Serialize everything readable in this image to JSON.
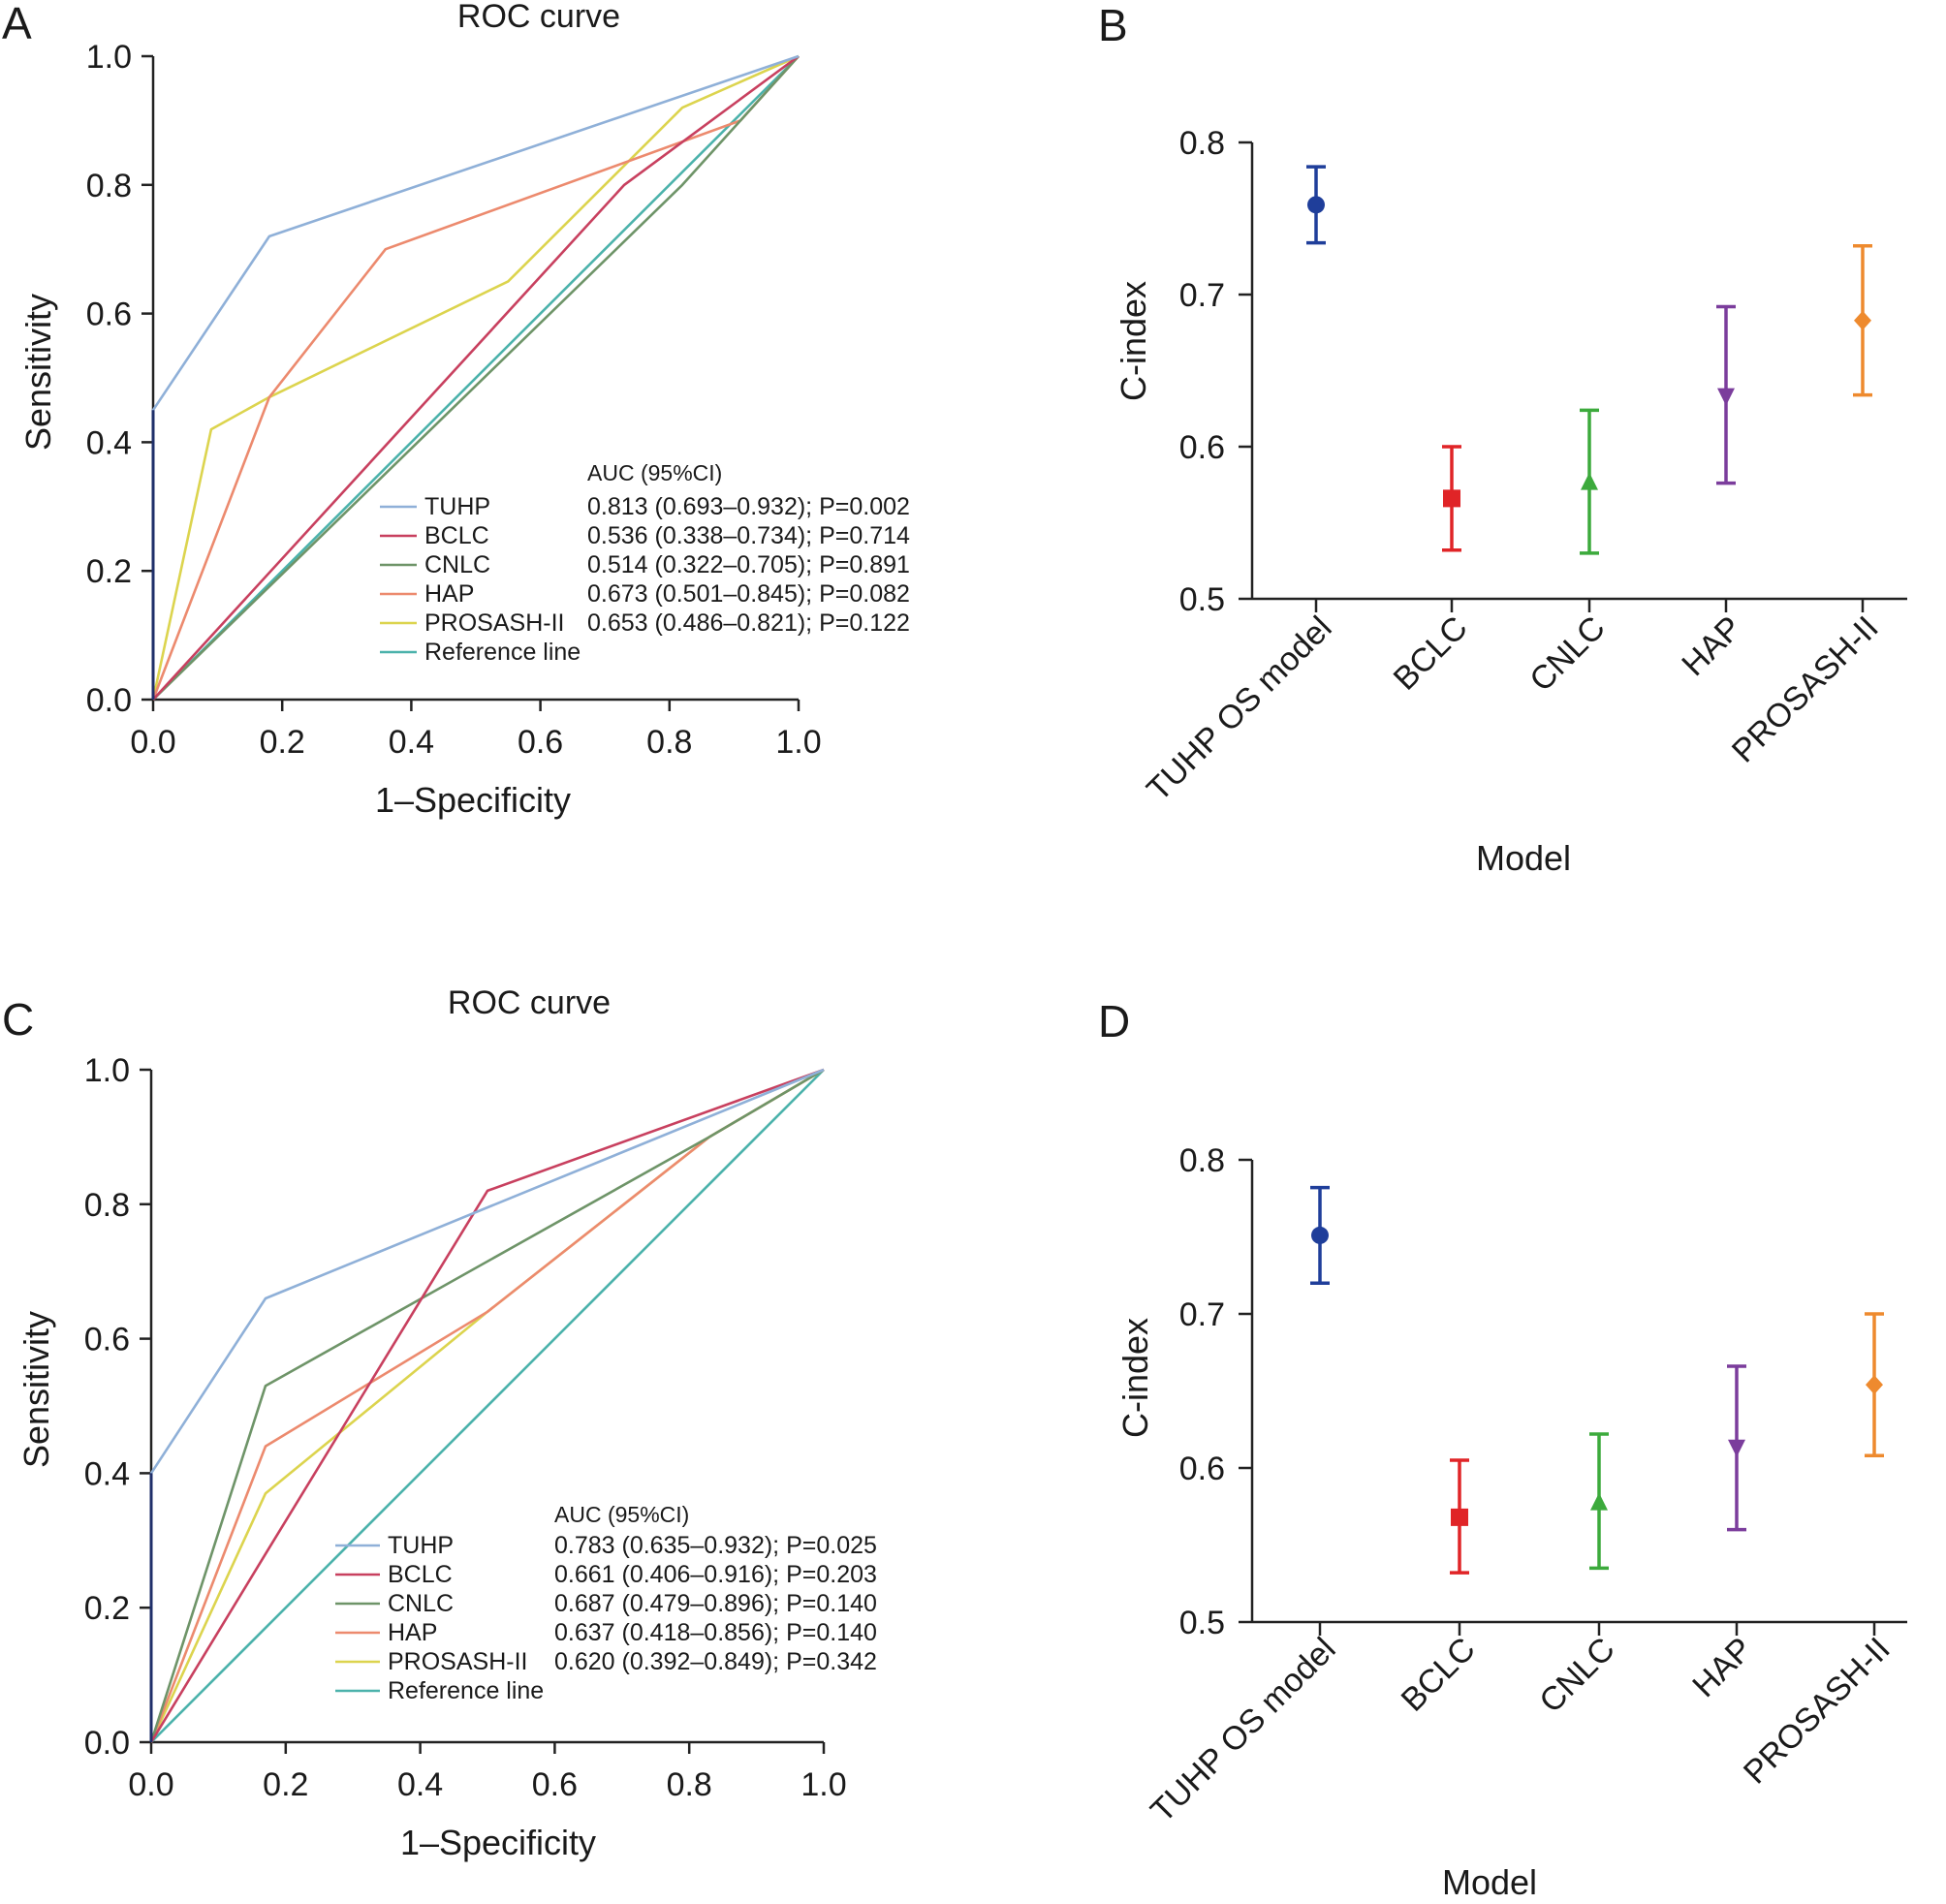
{
  "panels": [
    {
      "letter": "A",
      "chart": {
        "type": "line",
        "title": "ROC curve",
        "xlabel": "1–Specificity",
        "ylabel": "Sensitivity",
        "xlim": [
          0,
          1
        ],
        "ylim": [
          0,
          1
        ],
        "ticks": [
          "0.0",
          "0.2",
          "0.4",
          "0.6",
          "0.8",
          "1.0"
        ],
        "legend_header": "AUC (95%CI)",
        "series": [
          {
            "name": "TUHP",
            "auc": "0.813 (0.693–0.932); P=0.002",
            "color": "#8fb0d8",
            "points": [
              [
                0,
                0
              ],
              [
                0,
                0.45
              ],
              [
                0.18,
                0.72
              ],
              [
                1,
                1
              ]
            ]
          },
          {
            "name": "BCLC",
            "auc": "0.536 (0.338–0.734); P=0.714",
            "color": "#c8405f",
            "points": [
              [
                0,
                0
              ],
              [
                0.73,
                0.8
              ],
              [
                1,
                1
              ]
            ]
          },
          {
            "name": "CNLC",
            "auc": "0.514 (0.322–0.705); P=0.891",
            "color": "#6e9468",
            "points": [
              [
                0,
                0
              ],
              [
                0.82,
                0.8
              ],
              [
                1,
                1
              ]
            ]
          },
          {
            "name": "HAP",
            "auc": "0.673 (0.501–0.845); P=0.082",
            "color": "#ec8a6e",
            "points": [
              [
                0,
                0
              ],
              [
                0.18,
                0.47
              ],
              [
                0.36,
                0.7
              ],
              [
                0.91,
                0.9
              ],
              [
                1,
                1
              ]
            ]
          },
          {
            "name": "PROSASH-II",
            "auc": "0.653 (0.486–0.821); P=0.122",
            "color": "#dcd44e",
            "points": [
              [
                0,
                0
              ],
              [
                0.09,
                0.42
              ],
              [
                0.18,
                0.47
              ],
              [
                0.55,
                0.65
              ],
              [
                0.82,
                0.92
              ],
              [
                1,
                1
              ]
            ]
          },
          {
            "name": "Reference line",
            "auc": "",
            "color": "#4bb2ab",
            "points": [
              [
                0,
                0
              ],
              [
                1,
                1
              ]
            ]
          }
        ]
      }
    },
    {
      "letter": "B",
      "chart": {
        "type": "errorbar",
        "xlabel": "Model",
        "ylabel": "C-index",
        "ylim": [
          0.5,
          0.8
        ],
        "ticks": [
          "0.5",
          "0.6",
          "0.7",
          "0.8"
        ],
        "categories": [
          "TUHP OS model",
          "BCLC",
          "CNLC",
          "HAP",
          "PROSASH-II"
        ],
        "values": [
          0.759,
          0.566,
          0.576,
          0.634,
          0.683
        ],
        "lower": [
          0.734,
          0.532,
          0.53,
          0.576,
          0.634
        ],
        "upper": [
          0.784,
          0.6,
          0.624,
          0.692,
          0.732
        ],
        "markers": [
          "circle",
          "square",
          "triangle-up",
          "triangle-down",
          "diamond"
        ],
        "colors": [
          "#1f3e9a",
          "#e02427",
          "#3caa3c",
          "#7b3d9c",
          "#ee8a2e"
        ]
      }
    },
    {
      "letter": "C",
      "chart": {
        "type": "line",
        "title": "ROC curve",
        "xlabel": "1–Specificity",
        "ylabel": "Sensitivity",
        "xlim": [
          0,
          1
        ],
        "ylim": [
          0,
          1
        ],
        "ticks": [
          "0.0",
          "0.2",
          "0.4",
          "0.6",
          "0.8",
          "1.0"
        ],
        "legend_header": "AUC (95%CI)",
        "series": [
          {
            "name": "TUHP",
            "auc": "0.783 (0.635–0.932); P=0.025",
            "color": "#8fb0d8",
            "points": [
              [
                0,
                0
              ],
              [
                0,
                0.4
              ],
              [
                0.17,
                0.66
              ],
              [
                1,
                1
              ]
            ]
          },
          {
            "name": "BCLC",
            "auc": "0.661 (0.406–0.916); P=0.203",
            "color": "#c8405f",
            "points": [
              [
                0,
                0
              ],
              [
                0.17,
                0.28
              ],
              [
                0.5,
                0.82
              ],
              [
                1,
                1
              ]
            ]
          },
          {
            "name": "CNLC",
            "auc": "0.687 (0.479–0.896); P=0.140",
            "color": "#6e9468",
            "points": [
              [
                0,
                0
              ],
              [
                0.17,
                0.53
              ],
              [
                0.83,
                0.9
              ],
              [
                1,
                1
              ]
            ]
          },
          {
            "name": "HAP",
            "auc": "0.637 (0.418–0.856); P=0.140",
            "color": "#ec8a6e",
            "points": [
              [
                0,
                0
              ],
              [
                0.17,
                0.44
              ],
              [
                0.5,
                0.64
              ],
              [
                0.83,
                0.9
              ],
              [
                1,
                1
              ]
            ]
          },
          {
            "name": "PROSASH-II",
            "auc": "0.620 (0.392–0.849); P=0.342",
            "color": "#dcd44e",
            "points": [
              [
                0,
                0
              ],
              [
                0.17,
                0.37
              ],
              [
                0.5,
                0.64
              ],
              [
                0.83,
                0.9
              ],
              [
                1,
                1
              ]
            ]
          },
          {
            "name": "Reference line",
            "auc": "",
            "color": "#4bb2ab",
            "points": [
              [
                0,
                0
              ],
              [
                1,
                1
              ]
            ]
          }
        ]
      }
    },
    {
      "letter": "D",
      "chart": {
        "type": "errorbar",
        "xlabel": "Model",
        "ylabel": "C-index",
        "ylim": [
          0.5,
          0.8
        ],
        "ticks": [
          "0.5",
          "0.6",
          "0.7",
          "0.8"
        ],
        "categories": [
          "TUHP OS model",
          "BCLC",
          "CNLC",
          "HAP",
          "PROSASH-II"
        ],
        "values": [
          0.751,
          0.568,
          0.577,
          0.614,
          0.654
        ],
        "lower": [
          0.72,
          0.532,
          0.535,
          0.56,
          0.608
        ],
        "upper": [
          0.782,
          0.605,
          0.622,
          0.666,
          0.7
        ],
        "markers": [
          "circle",
          "square",
          "triangle-up",
          "triangle-down",
          "diamond"
        ],
        "colors": [
          "#1f3e9a",
          "#e02427",
          "#3caa3c",
          "#7b3d9c",
          "#ee8a2e"
        ]
      }
    }
  ],
  "chart_data": [
    {
      "type": "line",
      "title": "ROC curve",
      "xlabel": "1–Specificity",
      "ylabel": "Sensitivity",
      "xlim": [
        0,
        1
      ],
      "ylim": [
        0,
        1
      ],
      "series": [
        {
          "name": "TUHP",
          "x": [
            0,
            0,
            0.18,
            1
          ],
          "y": [
            0,
            0.45,
            0.72,
            1
          ]
        },
        {
          "name": "BCLC",
          "x": [
            0,
            0.73,
            1
          ],
          "y": [
            0,
            0.8,
            1
          ]
        },
        {
          "name": "CNLC",
          "x": [
            0,
            0.82,
            1
          ],
          "y": [
            0,
            0.8,
            1
          ]
        },
        {
          "name": "HAP",
          "x": [
            0,
            0.18,
            0.36,
            0.91,
            1
          ],
          "y": [
            0,
            0.47,
            0.7,
            0.9,
            1
          ]
        },
        {
          "name": "PROSASH-II",
          "x": [
            0,
            0.09,
            0.18,
            0.55,
            0.82,
            1
          ],
          "y": [
            0,
            0.42,
            0.47,
            0.65,
            0.92,
            1
          ]
        },
        {
          "name": "Reference line",
          "x": [
            0,
            1
          ],
          "y": [
            0,
            1
          ]
        }
      ]
    },
    {
      "type": "scatter",
      "xlabel": "Model",
      "ylabel": "C-index",
      "ylim": [
        0.5,
        0.8
      ],
      "categories": [
        "TUHP OS model",
        "BCLC",
        "CNLC",
        "HAP",
        "PROSASH-II"
      ],
      "values": [
        0.759,
        0.566,
        0.576,
        0.634,
        0.683
      ],
      "lower": [
        0.734,
        0.532,
        0.53,
        0.576,
        0.634
      ],
      "upper": [
        0.784,
        0.6,
        0.624,
        0.692,
        0.732
      ]
    },
    {
      "type": "line",
      "title": "ROC curve",
      "xlabel": "1–Specificity",
      "ylabel": "Sensitivity",
      "xlim": [
        0,
        1
      ],
      "ylim": [
        0,
        1
      ],
      "series": [
        {
          "name": "TUHP",
          "x": [
            0,
            0,
            0.17,
            1
          ],
          "y": [
            0,
            0.4,
            0.66,
            1
          ]
        },
        {
          "name": "BCLC",
          "x": [
            0,
            0.17,
            0.5,
            1
          ],
          "y": [
            0,
            0.28,
            0.82,
            1
          ]
        },
        {
          "name": "CNLC",
          "x": [
            0,
            0.17,
            0.83,
            1
          ],
          "y": [
            0,
            0.53,
            0.9,
            1
          ]
        },
        {
          "name": "HAP",
          "x": [
            0,
            0.17,
            0.5,
            0.83,
            1
          ],
          "y": [
            0,
            0.44,
            0.64,
            0.9,
            1
          ]
        },
        {
          "name": "PROSASH-II",
          "x": [
            0,
            0.17,
            0.5,
            0.83,
            1
          ],
          "y": [
            0,
            0.37,
            0.64,
            0.9,
            1
          ]
        },
        {
          "name": "Reference line",
          "x": [
            0,
            1
          ],
          "y": [
            0,
            1
          ]
        }
      ]
    },
    {
      "type": "scatter",
      "xlabel": "Model",
      "ylabel": "C-index",
      "ylim": [
        0.5,
        0.8
      ],
      "categories": [
        "TUHP OS model",
        "BCLC",
        "CNLC",
        "HAP",
        "PROSASH-II"
      ],
      "values": [
        0.751,
        0.568,
        0.577,
        0.614,
        0.654
      ],
      "lower": [
        0.72,
        0.532,
        0.535,
        0.56,
        0.608
      ],
      "upper": [
        0.782,
        0.605,
        0.622,
        0.666,
        0.7
      ]
    }
  ]
}
